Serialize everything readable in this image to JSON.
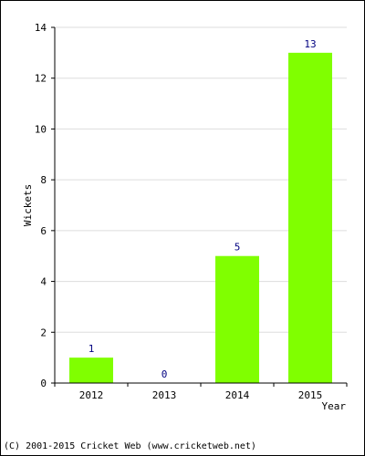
{
  "chart_data": {
    "type": "bar",
    "categories": [
      "2012",
      "2013",
      "2014",
      "2015"
    ],
    "values": [
      1,
      0,
      5,
      13
    ],
    "title": "",
    "xlabel": "Year",
    "ylabel": "Wickets",
    "ylim": [
      0,
      14
    ],
    "yticks": [
      0,
      2,
      4,
      6,
      8,
      10,
      12,
      14
    ],
    "grid": true,
    "legend": "none",
    "bar_color": "#80ff00",
    "label_color": "#000080"
  },
  "footer": {
    "copyright": "(C) 2001-2015 Cricket Web (www.cricketweb.net)"
  }
}
